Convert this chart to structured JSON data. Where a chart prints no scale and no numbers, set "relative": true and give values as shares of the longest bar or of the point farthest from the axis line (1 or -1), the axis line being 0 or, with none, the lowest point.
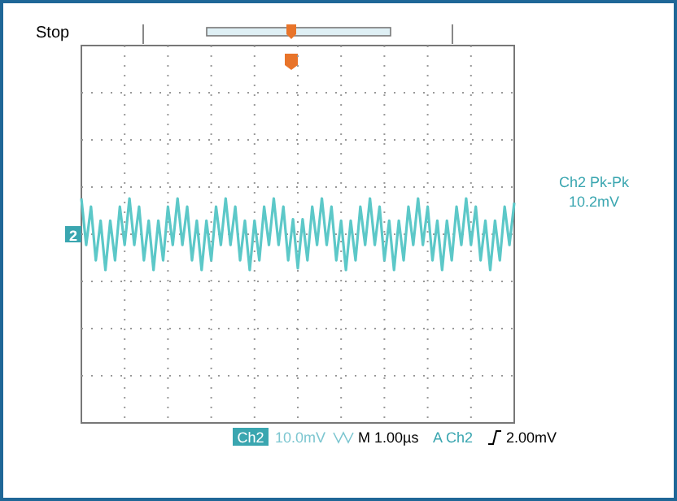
{
  "chart_data": {
    "type": "line",
    "relative": true,
    "grid": true,
    "categories": [
      null,
      null,
      null,
      null,
      null,
      null,
      null,
      null,
      null,
      null,
      null,
      null,
      null,
      null,
      null,
      null,
      null,
      null,
      null,
      null,
      null,
      null,
      null,
      null,
      null,
      null,
      null,
      null,
      null,
      null,
      null,
      null,
      null,
      null,
      null,
      null,
      null,
      null,
      null,
      null,
      null,
      null,
      null,
      null,
      null,
      null,
      null,
      null,
      null,
      null,
      null,
      null,
      null,
      null,
      null,
      null,
      null,
      null,
      null,
      null,
      null,
      null,
      null,
      null,
      null,
      null,
      null,
      null,
      null,
      null,
      null,
      null,
      null,
      null,
      null,
      null,
      null,
      null,
      null,
      null,
      null,
      null,
      null,
      null,
      null,
      null,
      null,
      null,
      null,
      null,
      null
    ],
    "series": [
      {
        "color": "#5cc8c8",
        "values": [
          1,
          -0.3,
          0.77,
          -0.73,
          0.38,
          -1,
          0.38,
          -0.73,
          0.77,
          -0.3,
          1,
          -0.3,
          0.77,
          -0.73,
          0.38,
          -1,
          0.38,
          -0.73,
          0.77,
          -0.3,
          1,
          -0.3,
          0.77,
          -0.73,
          0.38,
          -1,
          0.38,
          -0.73,
          0.77,
          -0.3,
          1,
          -0.3,
          0.77,
          -0.73,
          0.38,
          -1,
          0.38,
          -0.73,
          0.77,
          -0.3,
          1,
          -0.3,
          0.77,
          -0.73,
          0.42,
          -0.95,
          0.42,
          -0.73,
          0.77,
          -0.3,
          1,
          -0.3,
          0.77,
          -0.73,
          0.38,
          -1,
          0.38,
          -0.73,
          0.77,
          -0.3,
          1,
          -0.3,
          0.77,
          -0.73,
          0.38,
          -1,
          0.38,
          -0.73,
          0.77,
          -0.3,
          1,
          -0.3,
          0.77,
          -0.73,
          0.38,
          -1,
          0.38,
          -0.73,
          0.77,
          -0.3,
          1,
          -0.3,
          0.77,
          -0.73,
          0.38,
          -1,
          0.38,
          -0.73,
          0.77,
          -0.3,
          0.88
        ]
      }
    ],
    "annotations": [
      "Stop",
      "Ch2 Pk-Pk",
      "10.2mV",
      "Ch2",
      "10.0mV",
      "M 1.00µs",
      "A Ch2",
      "2.00mV",
      "2"
    ]
  }
}
